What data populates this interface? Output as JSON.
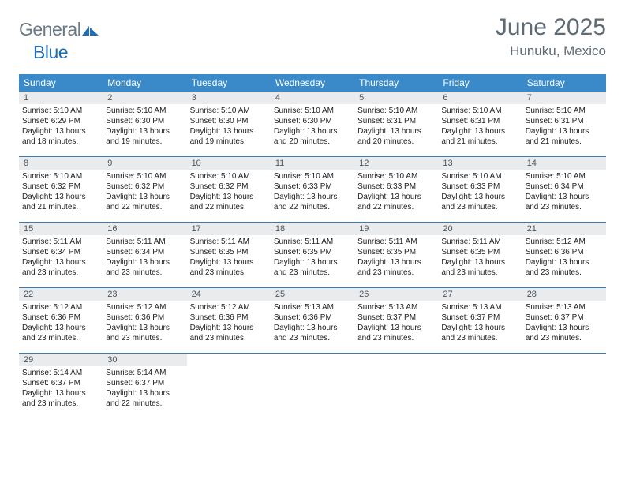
{
  "colors": {
    "header_bg": "#3a8ac9",
    "header_text": "#ffffff",
    "daynum_bg": "#e9ebec",
    "daynum_text": "#4a5560",
    "week_border": "#3a7bb0",
    "body_text": "#222222",
    "title_text": "#5f6b74",
    "logo_gray": "#6b7a85",
    "logo_blue": "#1f6db4",
    "page_bg": "#ffffff"
  },
  "typography": {
    "title_fontsize": 30,
    "location_fontsize": 17,
    "logo_fontsize": 23,
    "dow_fontsize": 12,
    "daynum_fontsize": 11,
    "body_fontsize": 10
  },
  "logo": {
    "part1": "General",
    "part2": "Blue"
  },
  "title": "June 2025",
  "location": "Hunuku, Mexico",
  "days_of_week": [
    "Sunday",
    "Monday",
    "Tuesday",
    "Wednesday",
    "Thursday",
    "Friday",
    "Saturday"
  ],
  "weeks": [
    [
      {
        "n": "1",
        "sr": "Sunrise: 5:10 AM",
        "ss": "Sunset: 6:29 PM",
        "d1": "Daylight: 13 hours",
        "d2": "and 18 minutes."
      },
      {
        "n": "2",
        "sr": "Sunrise: 5:10 AM",
        "ss": "Sunset: 6:30 PM",
        "d1": "Daylight: 13 hours",
        "d2": "and 19 minutes."
      },
      {
        "n": "3",
        "sr": "Sunrise: 5:10 AM",
        "ss": "Sunset: 6:30 PM",
        "d1": "Daylight: 13 hours",
        "d2": "and 19 minutes."
      },
      {
        "n": "4",
        "sr": "Sunrise: 5:10 AM",
        "ss": "Sunset: 6:30 PM",
        "d1": "Daylight: 13 hours",
        "d2": "and 20 minutes."
      },
      {
        "n": "5",
        "sr": "Sunrise: 5:10 AM",
        "ss": "Sunset: 6:31 PM",
        "d1": "Daylight: 13 hours",
        "d2": "and 20 minutes."
      },
      {
        "n": "6",
        "sr": "Sunrise: 5:10 AM",
        "ss": "Sunset: 6:31 PM",
        "d1": "Daylight: 13 hours",
        "d2": "and 21 minutes."
      },
      {
        "n": "7",
        "sr": "Sunrise: 5:10 AM",
        "ss": "Sunset: 6:31 PM",
        "d1": "Daylight: 13 hours",
        "d2": "and 21 minutes."
      }
    ],
    [
      {
        "n": "8",
        "sr": "Sunrise: 5:10 AM",
        "ss": "Sunset: 6:32 PM",
        "d1": "Daylight: 13 hours",
        "d2": "and 21 minutes."
      },
      {
        "n": "9",
        "sr": "Sunrise: 5:10 AM",
        "ss": "Sunset: 6:32 PM",
        "d1": "Daylight: 13 hours",
        "d2": "and 22 minutes."
      },
      {
        "n": "10",
        "sr": "Sunrise: 5:10 AM",
        "ss": "Sunset: 6:32 PM",
        "d1": "Daylight: 13 hours",
        "d2": "and 22 minutes."
      },
      {
        "n": "11",
        "sr": "Sunrise: 5:10 AM",
        "ss": "Sunset: 6:33 PM",
        "d1": "Daylight: 13 hours",
        "d2": "and 22 minutes."
      },
      {
        "n": "12",
        "sr": "Sunrise: 5:10 AM",
        "ss": "Sunset: 6:33 PM",
        "d1": "Daylight: 13 hours",
        "d2": "and 22 minutes."
      },
      {
        "n": "13",
        "sr": "Sunrise: 5:10 AM",
        "ss": "Sunset: 6:33 PM",
        "d1": "Daylight: 13 hours",
        "d2": "and 23 minutes."
      },
      {
        "n": "14",
        "sr": "Sunrise: 5:10 AM",
        "ss": "Sunset: 6:34 PM",
        "d1": "Daylight: 13 hours",
        "d2": "and 23 minutes."
      }
    ],
    [
      {
        "n": "15",
        "sr": "Sunrise: 5:11 AM",
        "ss": "Sunset: 6:34 PM",
        "d1": "Daylight: 13 hours",
        "d2": "and 23 minutes."
      },
      {
        "n": "16",
        "sr": "Sunrise: 5:11 AM",
        "ss": "Sunset: 6:34 PM",
        "d1": "Daylight: 13 hours",
        "d2": "and 23 minutes."
      },
      {
        "n": "17",
        "sr": "Sunrise: 5:11 AM",
        "ss": "Sunset: 6:35 PM",
        "d1": "Daylight: 13 hours",
        "d2": "and 23 minutes."
      },
      {
        "n": "18",
        "sr": "Sunrise: 5:11 AM",
        "ss": "Sunset: 6:35 PM",
        "d1": "Daylight: 13 hours",
        "d2": "and 23 minutes."
      },
      {
        "n": "19",
        "sr": "Sunrise: 5:11 AM",
        "ss": "Sunset: 6:35 PM",
        "d1": "Daylight: 13 hours",
        "d2": "and 23 minutes."
      },
      {
        "n": "20",
        "sr": "Sunrise: 5:11 AM",
        "ss": "Sunset: 6:35 PM",
        "d1": "Daylight: 13 hours",
        "d2": "and 23 minutes."
      },
      {
        "n": "21",
        "sr": "Sunrise: 5:12 AM",
        "ss": "Sunset: 6:36 PM",
        "d1": "Daylight: 13 hours",
        "d2": "and 23 minutes."
      }
    ],
    [
      {
        "n": "22",
        "sr": "Sunrise: 5:12 AM",
        "ss": "Sunset: 6:36 PM",
        "d1": "Daylight: 13 hours",
        "d2": "and 23 minutes."
      },
      {
        "n": "23",
        "sr": "Sunrise: 5:12 AM",
        "ss": "Sunset: 6:36 PM",
        "d1": "Daylight: 13 hours",
        "d2": "and 23 minutes."
      },
      {
        "n": "24",
        "sr": "Sunrise: 5:12 AM",
        "ss": "Sunset: 6:36 PM",
        "d1": "Daylight: 13 hours",
        "d2": "and 23 minutes."
      },
      {
        "n": "25",
        "sr": "Sunrise: 5:13 AM",
        "ss": "Sunset: 6:36 PM",
        "d1": "Daylight: 13 hours",
        "d2": "and 23 minutes."
      },
      {
        "n": "26",
        "sr": "Sunrise: 5:13 AM",
        "ss": "Sunset: 6:37 PM",
        "d1": "Daylight: 13 hours",
        "d2": "and 23 minutes."
      },
      {
        "n": "27",
        "sr": "Sunrise: 5:13 AM",
        "ss": "Sunset: 6:37 PM",
        "d1": "Daylight: 13 hours",
        "d2": "and 23 minutes."
      },
      {
        "n": "28",
        "sr": "Sunrise: 5:13 AM",
        "ss": "Sunset: 6:37 PM",
        "d1": "Daylight: 13 hours",
        "d2": "and 23 minutes."
      }
    ],
    [
      {
        "n": "29",
        "sr": "Sunrise: 5:14 AM",
        "ss": "Sunset: 6:37 PM",
        "d1": "Daylight: 13 hours",
        "d2": "and 23 minutes."
      },
      {
        "n": "30",
        "sr": "Sunrise: 5:14 AM",
        "ss": "Sunset: 6:37 PM",
        "d1": "Daylight: 13 hours",
        "d2": "and 22 minutes."
      },
      null,
      null,
      null,
      null,
      null
    ]
  ]
}
